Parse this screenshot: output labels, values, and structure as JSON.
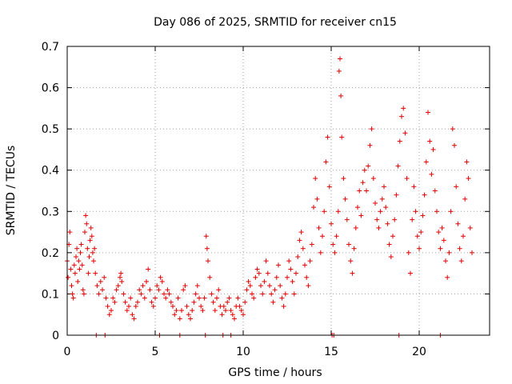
{
  "chart_data": {
    "type": "scatter",
    "title": "Day 086 of 2025, SRMTID for receiver cn15",
    "xlabel": "GPS time / hours",
    "ylabel": "SRMTID / TECUs",
    "xlim": [
      0,
      24
    ],
    "ylim": [
      0,
      0.7
    ],
    "x_ticks": [
      0,
      5,
      10,
      15,
      20
    ],
    "x_tick_labels": [
      "0",
      "5",
      "10",
      "15",
      "20"
    ],
    "y_ticks": [
      0,
      0.1,
      0.2,
      0.3,
      0.4,
      0.5,
      0.6,
      0.7
    ],
    "y_tick_labels": [
      "0",
      "0.1",
      "0.2",
      "0.3",
      "0.4",
      "0.5",
      "0.6",
      "0.7"
    ],
    "grid": true,
    "marker": "+",
    "color": "#e00000",
    "series": [
      {
        "name": "cn15 SRMTID",
        "points": [
          [
            0.0,
            0.18
          ],
          [
            0.05,
            0.14
          ],
          [
            0.1,
            0.22
          ],
          [
            0.15,
            0.25
          ],
          [
            0.2,
            0.16
          ],
          [
            0.25,
            0.12
          ],
          [
            0.3,
            0.1
          ],
          [
            0.35,
            0.09
          ],
          [
            0.4,
            0.17
          ],
          [
            0.45,
            0.15
          ],
          [
            0.5,
            0.19
          ],
          [
            0.55,
            0.21
          ],
          [
            0.6,
            0.13
          ],
          [
            0.65,
            0.18
          ],
          [
            0.7,
            0.16
          ],
          [
            0.75,
            0.2
          ],
          [
            0.8,
            0.22
          ],
          [
            0.85,
            0.17
          ],
          [
            0.9,
            0.11
          ],
          [
            0.95,
            0.1
          ],
          [
            1.0,
            0.25
          ],
          [
            1.05,
            0.29
          ],
          [
            1.1,
            0.27
          ],
          [
            1.15,
            0.21
          ],
          [
            1.2,
            0.15
          ],
          [
            1.25,
            0.19
          ],
          [
            1.3,
            0.23
          ],
          [
            1.35,
            0.26
          ],
          [
            1.4,
            0.24
          ],
          [
            1.45,
            0.2
          ],
          [
            1.5,
            0.18
          ],
          [
            1.55,
            0.21
          ],
          [
            1.6,
            0.15
          ],
          [
            1.7,
            0.12
          ],
          [
            1.8,
            0.1
          ],
          [
            1.9,
            0.13
          ],
          [
            2.0,
            0.11
          ],
          [
            2.1,
            0.14
          ],
          [
            2.2,
            0.09
          ],
          [
            2.3,
            0.07
          ],
          [
            2.4,
            0.05
          ],
          [
            2.5,
            0.06
          ],
          [
            2.6,
            0.09
          ],
          [
            2.7,
            0.08
          ],
          [
            2.8,
            0.11
          ],
          [
            2.9,
            0.12
          ],
          [
            3.0,
            0.14
          ],
          [
            3.05,
            0.15
          ],
          [
            3.1,
            0.13
          ],
          [
            3.2,
            0.1
          ],
          [
            3.3,
            0.08
          ],
          [
            3.4,
            0.06
          ],
          [
            3.5,
            0.07
          ],
          [
            3.6,
            0.09
          ],
          [
            3.7,
            0.05
          ],
          [
            3.8,
            0.04
          ],
          [
            3.9,
            0.07
          ],
          [
            4.0,
            0.08
          ],
          [
            4.1,
            0.11
          ],
          [
            4.2,
            0.1
          ],
          [
            4.3,
            0.12
          ],
          [
            4.4,
            0.09
          ],
          [
            4.5,
            0.13
          ],
          [
            4.6,
            0.16
          ],
          [
            4.7,
            0.11
          ],
          [
            4.8,
            0.08
          ],
          [
            4.9,
            0.07
          ],
          [
            5.0,
            0.09
          ],
          [
            5.1,
            0.12
          ],
          [
            5.2,
            0.11
          ],
          [
            5.3,
            0.14
          ],
          [
            5.4,
            0.13
          ],
          [
            5.5,
            0.1
          ],
          [
            5.6,
            0.09
          ],
          [
            5.7,
            0.11
          ],
          [
            5.8,
            0.1
          ],
          [
            5.9,
            0.08
          ],
          [
            6.0,
            0.07
          ],
          [
            6.1,
            0.05
          ],
          [
            6.2,
            0.06
          ],
          [
            6.3,
            0.09
          ],
          [
            6.4,
            0.04
          ],
          [
            6.5,
            0.06
          ],
          [
            6.6,
            0.11
          ],
          [
            6.7,
            0.12
          ],
          [
            6.8,
            0.07
          ],
          [
            6.9,
            0.05
          ],
          [
            7.0,
            0.04
          ],
          [
            7.1,
            0.06
          ],
          [
            7.2,
            0.08
          ],
          [
            7.3,
            0.1
          ],
          [
            7.4,
            0.12
          ],
          [
            7.5,
            0.09
          ],
          [
            7.6,
            0.07
          ],
          [
            7.7,
            0.06
          ],
          [
            7.8,
            0.09
          ],
          [
            7.9,
            0.24
          ],
          [
            7.95,
            0.21
          ],
          [
            8.0,
            0.18
          ],
          [
            8.1,
            0.14
          ],
          [
            8.2,
            0.1
          ],
          [
            8.3,
            0.08
          ],
          [
            8.4,
            0.06
          ],
          [
            8.5,
            0.09
          ],
          [
            8.6,
            0.11
          ],
          [
            8.7,
            0.07
          ],
          [
            8.8,
            0.05
          ],
          [
            8.9,
            0.07
          ],
          [
            9.0,
            0.06
          ],
          [
            9.1,
            0.08
          ],
          [
            9.2,
            0.09
          ],
          [
            9.3,
            0.06
          ],
          [
            9.4,
            0.05
          ],
          [
            9.5,
            0.04
          ],
          [
            9.6,
            0.07
          ],
          [
            9.7,
            0.09
          ],
          [
            9.8,
            0.07
          ],
          [
            9.9,
            0.06
          ],
          [
            10.0,
            0.05
          ],
          [
            10.1,
            0.08
          ],
          [
            10.2,
            0.11
          ],
          [
            10.3,
            0.13
          ],
          [
            10.4,
            0.12
          ],
          [
            10.5,
            0.1
          ],
          [
            10.6,
            0.09
          ],
          [
            10.7,
            0.14
          ],
          [
            10.8,
            0.16
          ],
          [
            10.9,
            0.15
          ],
          [
            11.0,
            0.12
          ],
          [
            11.1,
            0.1
          ],
          [
            11.2,
            0.13
          ],
          [
            11.3,
            0.18
          ],
          [
            11.4,
            0.15
          ],
          [
            11.5,
            0.12
          ],
          [
            11.6,
            0.1
          ],
          [
            11.7,
            0.08
          ],
          [
            11.8,
            0.11
          ],
          [
            11.9,
            0.14
          ],
          [
            12.0,
            0.17
          ],
          [
            12.1,
            0.12
          ],
          [
            12.2,
            0.09
          ],
          [
            12.3,
            0.07
          ],
          [
            12.4,
            0.1
          ],
          [
            12.5,
            0.14
          ],
          [
            12.6,
            0.18
          ],
          [
            12.7,
            0.16
          ],
          [
            12.8,
            0.13
          ],
          [
            12.9,
            0.1
          ],
          [
            13.0,
            0.15
          ],
          [
            13.1,
            0.19
          ],
          [
            13.2,
            0.23
          ],
          [
            13.3,
            0.25
          ],
          [
            13.4,
            0.21
          ],
          [
            13.5,
            0.17
          ],
          [
            13.6,
            0.14
          ],
          [
            13.7,
            0.12
          ],
          [
            13.8,
            0.18
          ],
          [
            13.9,
            0.22
          ],
          [
            14.0,
            0.31
          ],
          [
            14.1,
            0.38
          ],
          [
            14.2,
            0.33
          ],
          [
            14.3,
            0.26
          ],
          [
            14.4,
            0.2
          ],
          [
            14.5,
            0.24
          ],
          [
            14.6,
            0.3
          ],
          [
            14.7,
            0.42
          ],
          [
            14.8,
            0.48
          ],
          [
            14.9,
            0.36
          ],
          [
            15.0,
            0.27
          ],
          [
            15.1,
            0.22
          ],
          [
            15.2,
            0.2
          ],
          [
            15.3,
            0.24
          ],
          [
            15.4,
            0.3
          ],
          [
            15.45,
            0.64
          ],
          [
            15.5,
            0.67
          ],
          [
            15.55,
            0.58
          ],
          [
            15.6,
            0.48
          ],
          [
            15.7,
            0.38
          ],
          [
            15.8,
            0.33
          ],
          [
            15.9,
            0.28
          ],
          [
            16.0,
            0.22
          ],
          [
            16.1,
            0.18
          ],
          [
            16.2,
            0.15
          ],
          [
            16.3,
            0.21
          ],
          [
            16.4,
            0.26
          ],
          [
            16.5,
            0.31
          ],
          [
            16.6,
            0.35
          ],
          [
            16.7,
            0.29
          ],
          [
            16.8,
            0.37
          ],
          [
            16.9,
            0.4
          ],
          [
            17.0,
            0.35
          ],
          [
            17.1,
            0.41
          ],
          [
            17.2,
            0.46
          ],
          [
            17.3,
            0.5
          ],
          [
            17.4,
            0.38
          ],
          [
            17.5,
            0.32
          ],
          [
            17.6,
            0.28
          ],
          [
            17.7,
            0.26
          ],
          [
            17.8,
            0.3
          ],
          [
            17.9,
            0.33
          ],
          [
            18.0,
            0.36
          ],
          [
            18.1,
            0.31
          ],
          [
            18.2,
            0.27
          ],
          [
            18.3,
            0.22
          ],
          [
            18.4,
            0.19
          ],
          [
            18.5,
            0.24
          ],
          [
            18.6,
            0.28
          ],
          [
            18.7,
            0.34
          ],
          [
            18.8,
            0.41
          ],
          [
            18.9,
            0.47
          ],
          [
            19.0,
            0.53
          ],
          [
            19.1,
            0.55
          ],
          [
            19.2,
            0.49
          ],
          [
            19.3,
            0.38
          ],
          [
            19.4,
            0.2
          ],
          [
            19.5,
            0.15
          ],
          [
            19.6,
            0.28
          ],
          [
            19.7,
            0.36
          ],
          [
            19.8,
            0.3
          ],
          [
            19.9,
            0.24
          ],
          [
            20.0,
            0.21
          ],
          [
            20.1,
            0.25
          ],
          [
            20.2,
            0.29
          ],
          [
            20.3,
            0.34
          ],
          [
            20.4,
            0.42
          ],
          [
            20.5,
            0.54
          ],
          [
            20.6,
            0.47
          ],
          [
            20.7,
            0.39
          ],
          [
            20.8,
            0.45
          ],
          [
            20.9,
            0.35
          ],
          [
            21.0,
            0.3
          ],
          [
            21.1,
            0.25
          ],
          [
            21.2,
            0.21
          ],
          [
            21.3,
            0.26
          ],
          [
            21.4,
            0.23
          ],
          [
            21.5,
            0.18
          ],
          [
            21.6,
            0.14
          ],
          [
            21.7,
            0.2
          ],
          [
            21.8,
            0.3
          ],
          [
            21.9,
            0.5
          ],
          [
            22.0,
            0.46
          ],
          [
            22.1,
            0.36
          ],
          [
            22.2,
            0.27
          ],
          [
            22.3,
            0.21
          ],
          [
            22.4,
            0.18
          ],
          [
            22.5,
            0.24
          ],
          [
            22.6,
            0.33
          ],
          [
            22.7,
            0.42
          ],
          [
            22.8,
            0.38
          ],
          [
            22.9,
            0.26
          ],
          [
            23.0,
            0.2
          ]
        ]
      }
    ],
    "zero_points_x": [
      1.65,
      2.15,
      5.25,
      6.4,
      7.85,
      8.85,
      9.3,
      15.05,
      15.15,
      18.85,
      21.2
    ]
  }
}
